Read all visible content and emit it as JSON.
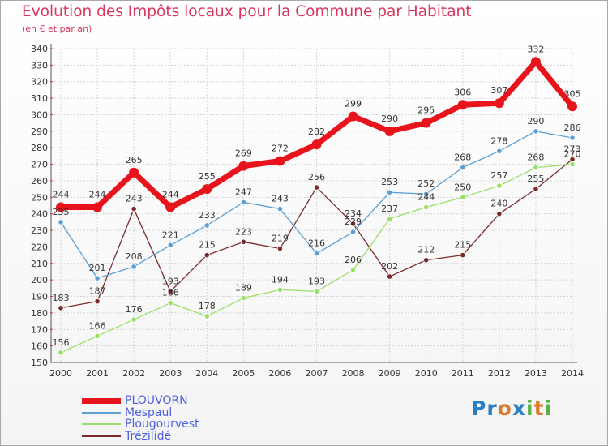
{
  "header": {
    "title": "Evolution des Impôts locaux pour la Commune par Habitant",
    "subtitle": "(en € et par an)"
  },
  "colors": {
    "title": "#d9365d",
    "legend_text": "#4f5fe0",
    "grid": "#d4d4d4",
    "axis_ticks": "#e03a3a"
  },
  "logo": {
    "p1": "Pr",
    "o": "o",
    "x": "x",
    "it": "it",
    "i2": "i"
  },
  "chart_data": {
    "type": "line",
    "title": "Evolution des Impôts locaux pour la Commune par Habitant",
    "subtitle": "(en € et par an)",
    "xlabel": "",
    "ylabel": "",
    "ylim": [
      150,
      340
    ],
    "ytick_step": 10,
    "grid": true,
    "legend_position": "bottom-left",
    "categories": [
      "2000",
      "2001",
      "2002",
      "2003",
      "2004",
      "2005",
      "2006",
      "2007",
      "2008",
      "2009",
      "2010",
      "2011",
      "2012",
      "2013",
      "2014"
    ],
    "series": [
      {
        "name": "PLOUVORN",
        "color": "#e8141b",
        "width": 7,
        "values": [
          244,
          244,
          265,
          244,
          255,
          269,
          272,
          282,
          299,
          290,
          295,
          306,
          307,
          332,
          305
        ]
      },
      {
        "name": "Mespaul",
        "color": "#5c9fd4",
        "width": 1.3,
        "values": [
          235,
          201,
          208,
          221,
          233,
          247,
          243,
          216,
          229,
          253,
          252,
          268,
          278,
          290,
          286
        ]
      },
      {
        "name": "Plougourvest",
        "color": "#9bdf6a",
        "width": 1.3,
        "values": [
          156,
          166,
          176,
          186,
          178,
          189,
          194,
          193,
          206,
          237,
          244,
          250,
          257,
          268,
          270
        ]
      },
      {
        "name": "Trézilidé",
        "color": "#7a2c2c",
        "width": 1.3,
        "values": [
          183,
          187,
          243,
          193,
          215,
          223,
          219,
          256,
          234,
          202,
          212,
          215,
          240,
          255,
          273
        ]
      }
    ]
  }
}
